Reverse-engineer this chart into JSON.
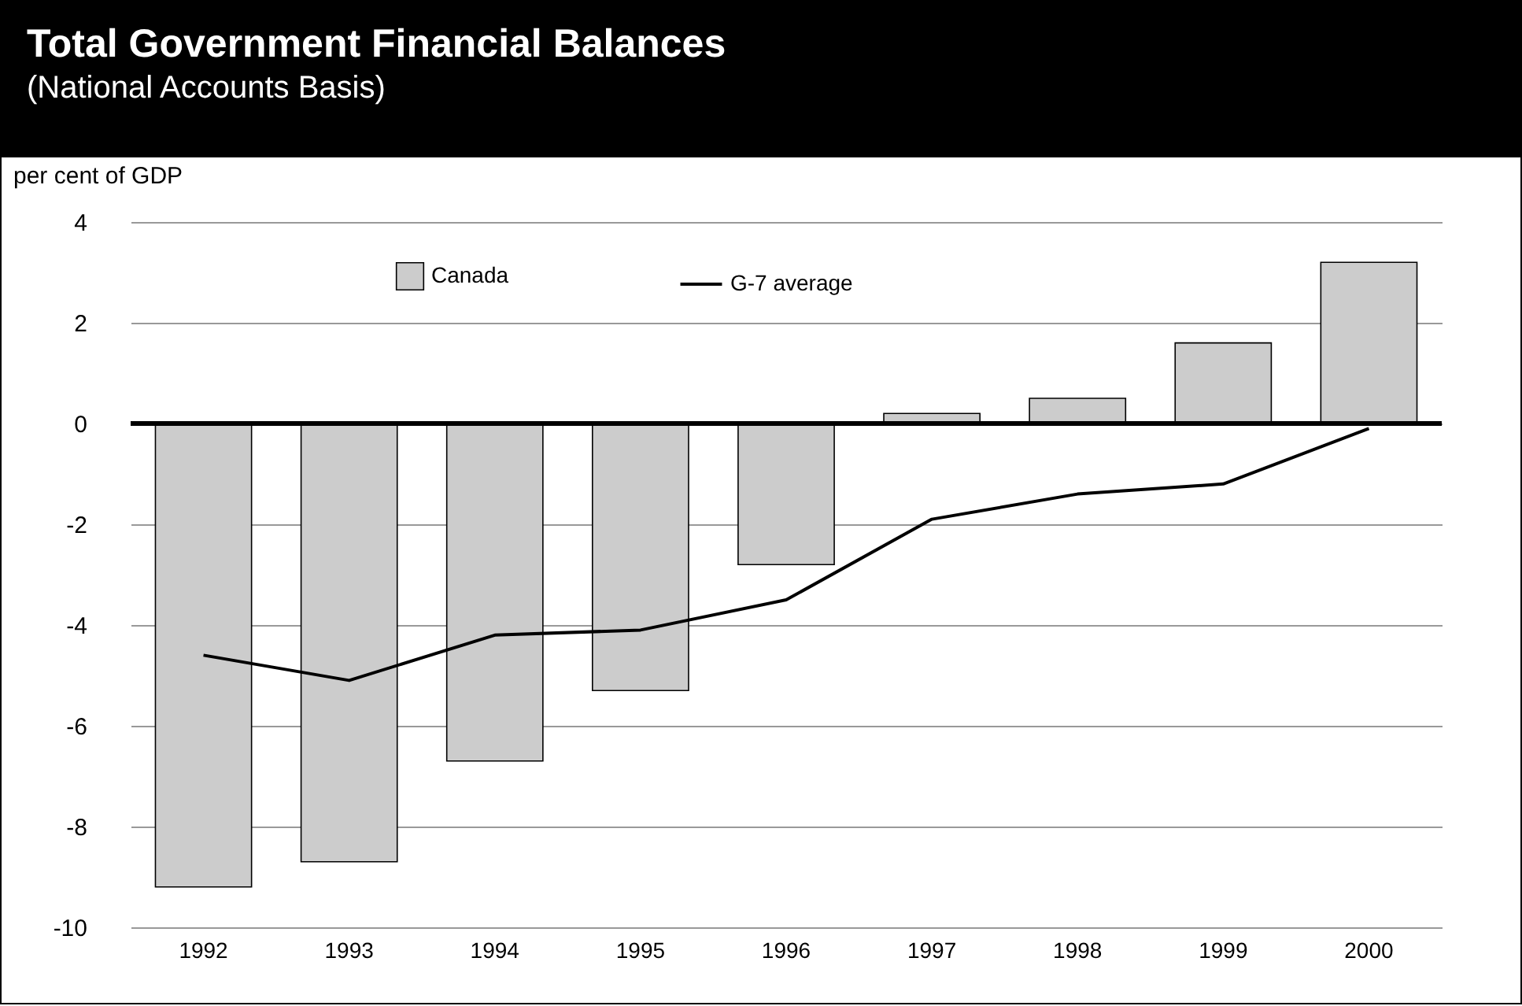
{
  "chart_data": {
    "type": "bar",
    "title": "Total Government Financial Balances",
    "subtitle": "(National Accounts Basis)",
    "ylabel": "per cent of GDP",
    "categories": [
      "1992",
      "1993",
      "1994",
      "1995",
      "1996",
      "1997",
      "1998",
      "1999",
      "2000"
    ],
    "series": [
      {
        "name": "Canada",
        "color": "#cccccc",
        "values": [
          -9.2,
          -8.7,
          -6.7,
          -5.3,
          -2.8,
          0.2,
          0.5,
          1.6,
          3.2
        ]
      },
      {
        "name": "G-7 average",
        "type": "line",
        "color": "#000000",
        "values": [
          -4.6,
          -5.1,
          -4.2,
          -4.1,
          -3.5,
          -1.9,
          -1.4,
          -1.2,
          -0.1
        ]
      }
    ],
    "ylim": [
      -10,
      4
    ],
    "yticks": [
      -10,
      -8,
      -6,
      -4,
      -2,
      0,
      2,
      4
    ],
    "grid": "y",
    "legend": "top",
    "ref_lines": [
      {
        "axis": "y",
        "value": 0,
        "color": "#000000"
      }
    ]
  }
}
